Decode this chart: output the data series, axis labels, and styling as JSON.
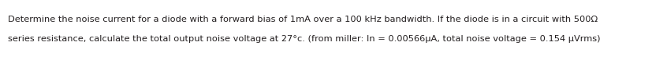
{
  "text_line1": "Determine the noise current for a diode with a forward bias of 1mA over a 100 kHz bandwidth. If the diode is in a circuit with 500Ω",
  "text_line2": "series resistance, calculate the total output noise voltage at 27°c. (from miller: In = 0.00566µA, total noise voltage = 0.154 µVrms)",
  "background_color": "#ffffff",
  "text_color": "#231f20",
  "font_size": 8.2,
  "fig_width": 8.46,
  "fig_height": 0.77,
  "dpi": 100
}
